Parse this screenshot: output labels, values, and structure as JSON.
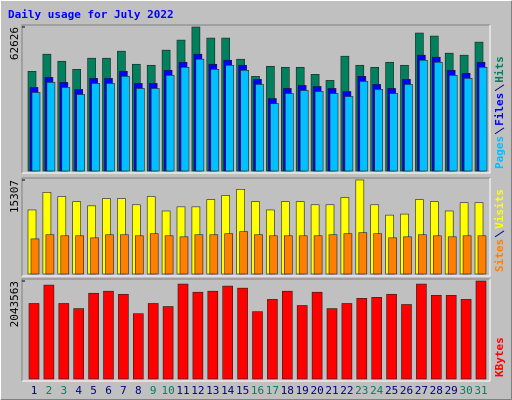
{
  "title": "Daily usage for July 2022",
  "chart_data": [
    {
      "type": "bar",
      "ylim": [
        0,
        62626
      ],
      "yticks": [
        62626
      ],
      "series": [
        {
          "name": "Hits",
          "color": "#00805c",
          "values": [
            43355,
            50800,
            47735,
            44230,
            49050,
            49050,
            52113,
            46420,
            45983,
            52552,
            56930,
            62626,
            57810,
            57810,
            48610,
            41165,
            45545,
            45110,
            45110,
            42040,
            39415,
            49925,
            45983,
            45110,
            47300,
            45983,
            60000,
            58680,
            51240,
            50360,
            56055
          ]
        },
        {
          "name": "Files",
          "color": "#0000ff",
          "values": [
            36346,
            40725,
            38536,
            35470,
            40287,
            40287,
            43353,
            38098,
            38098,
            43790,
            47294,
            50797,
            46418,
            48170,
            45980,
            39849,
            31529,
            35908,
            37222,
            36784,
            35908,
            34595,
            41163,
            37660,
            35908,
            39849,
            50359,
            49483,
            43790,
            42476,
            47294
          ]
        },
        {
          "name": "Pages",
          "color": "#00c0ff",
          "values": [
            34156,
            38535,
            36346,
            33280,
            38097,
            38097,
            41163,
            35908,
            35908,
            41600,
            45104,
            48607,
            44228,
            45980,
            43790,
            37659,
            29339,
            33718,
            35032,
            34594,
            33718,
            32405,
            38973,
            35470,
            33718,
            37659,
            48169,
            47293,
            41600,
            40286,
            45104
          ]
        }
      ]
    },
    {
      "type": "bar",
      "ylim": [
        0,
        15307
      ],
      "yticks": [
        15307
      ],
      "series": [
        {
          "name": "Visits",
          "color": "#ffff00",
          "values": [
            10428,
            13288,
            12615,
            11774,
            11101,
            12279,
            12279,
            11269,
            12615,
            10260,
            10933,
            10933,
            12110,
            12783,
            13792,
            11774,
            10428,
            11774,
            11774,
            11269,
            11269,
            12447,
            15307,
            11269,
            9587,
            9756,
            12110,
            11774,
            10260,
            11606,
            11606
          ]
        },
        {
          "name": "Sites",
          "color": "#ff8000",
          "values": [
            5719,
            6392,
            6223,
            6223,
            5887,
            6392,
            6392,
            6223,
            6560,
            6223,
            6055,
            6392,
            6392,
            6560,
            6896,
            6392,
            6223,
            6223,
            6223,
            6223,
            6392,
            6560,
            6728,
            6560,
            5887,
            6055,
            6392,
            6223,
            6055,
            6223,
            6223
          ]
        }
      ]
    },
    {
      "type": "bar",
      "ylim": [
        0,
        2043563
      ],
      "yticks": [
        2043563
      ],
      "categories": [
        "1",
        "2",
        "3",
        "4",
        "5",
        "6",
        "7",
        "8",
        "9",
        "10",
        "11",
        "12",
        "13",
        "14",
        "15",
        "16",
        "17",
        "18",
        "19",
        "20",
        "21",
        "22",
        "23",
        "24",
        "25",
        "26",
        "27",
        "28",
        "29",
        "30",
        "31"
      ],
      "category_colors": [
        "#000080",
        "#00805c",
        "#00805c",
        "#000080",
        "#000080",
        "#000080",
        "#000080",
        "#000080",
        "#00805c",
        "#00805c",
        "#000080",
        "#000080",
        "#000080",
        "#000080",
        "#000080",
        "#00805c",
        "#00805c",
        "#000080",
        "#000080",
        "#000080",
        "#000080",
        "#000080",
        "#00805c",
        "#00805c",
        "#000080",
        "#000080",
        "#000080",
        "#000080",
        "#000080",
        "#00805c",
        "#00805c"
      ],
      "series": [
        {
          "name": "KBytes",
          "color": "#ff0000",
          "values": [
            1575238,
            1958404,
            1575238,
            1468803,
            1788108,
            1830682,
            1766821,
            1362368,
            1575238,
            1511377,
            1979691,
            1809395,
            1830682,
            1937117,
            1894543,
            1404942,
            1660386,
            1830682,
            1532664,
            1809395,
            1468803,
            1575238,
            1681673,
            1702960,
            1766821,
            1553951,
            1979691,
            1745534,
            1745534,
            1660386,
            2043563
          ]
        }
      ]
    }
  ]
}
